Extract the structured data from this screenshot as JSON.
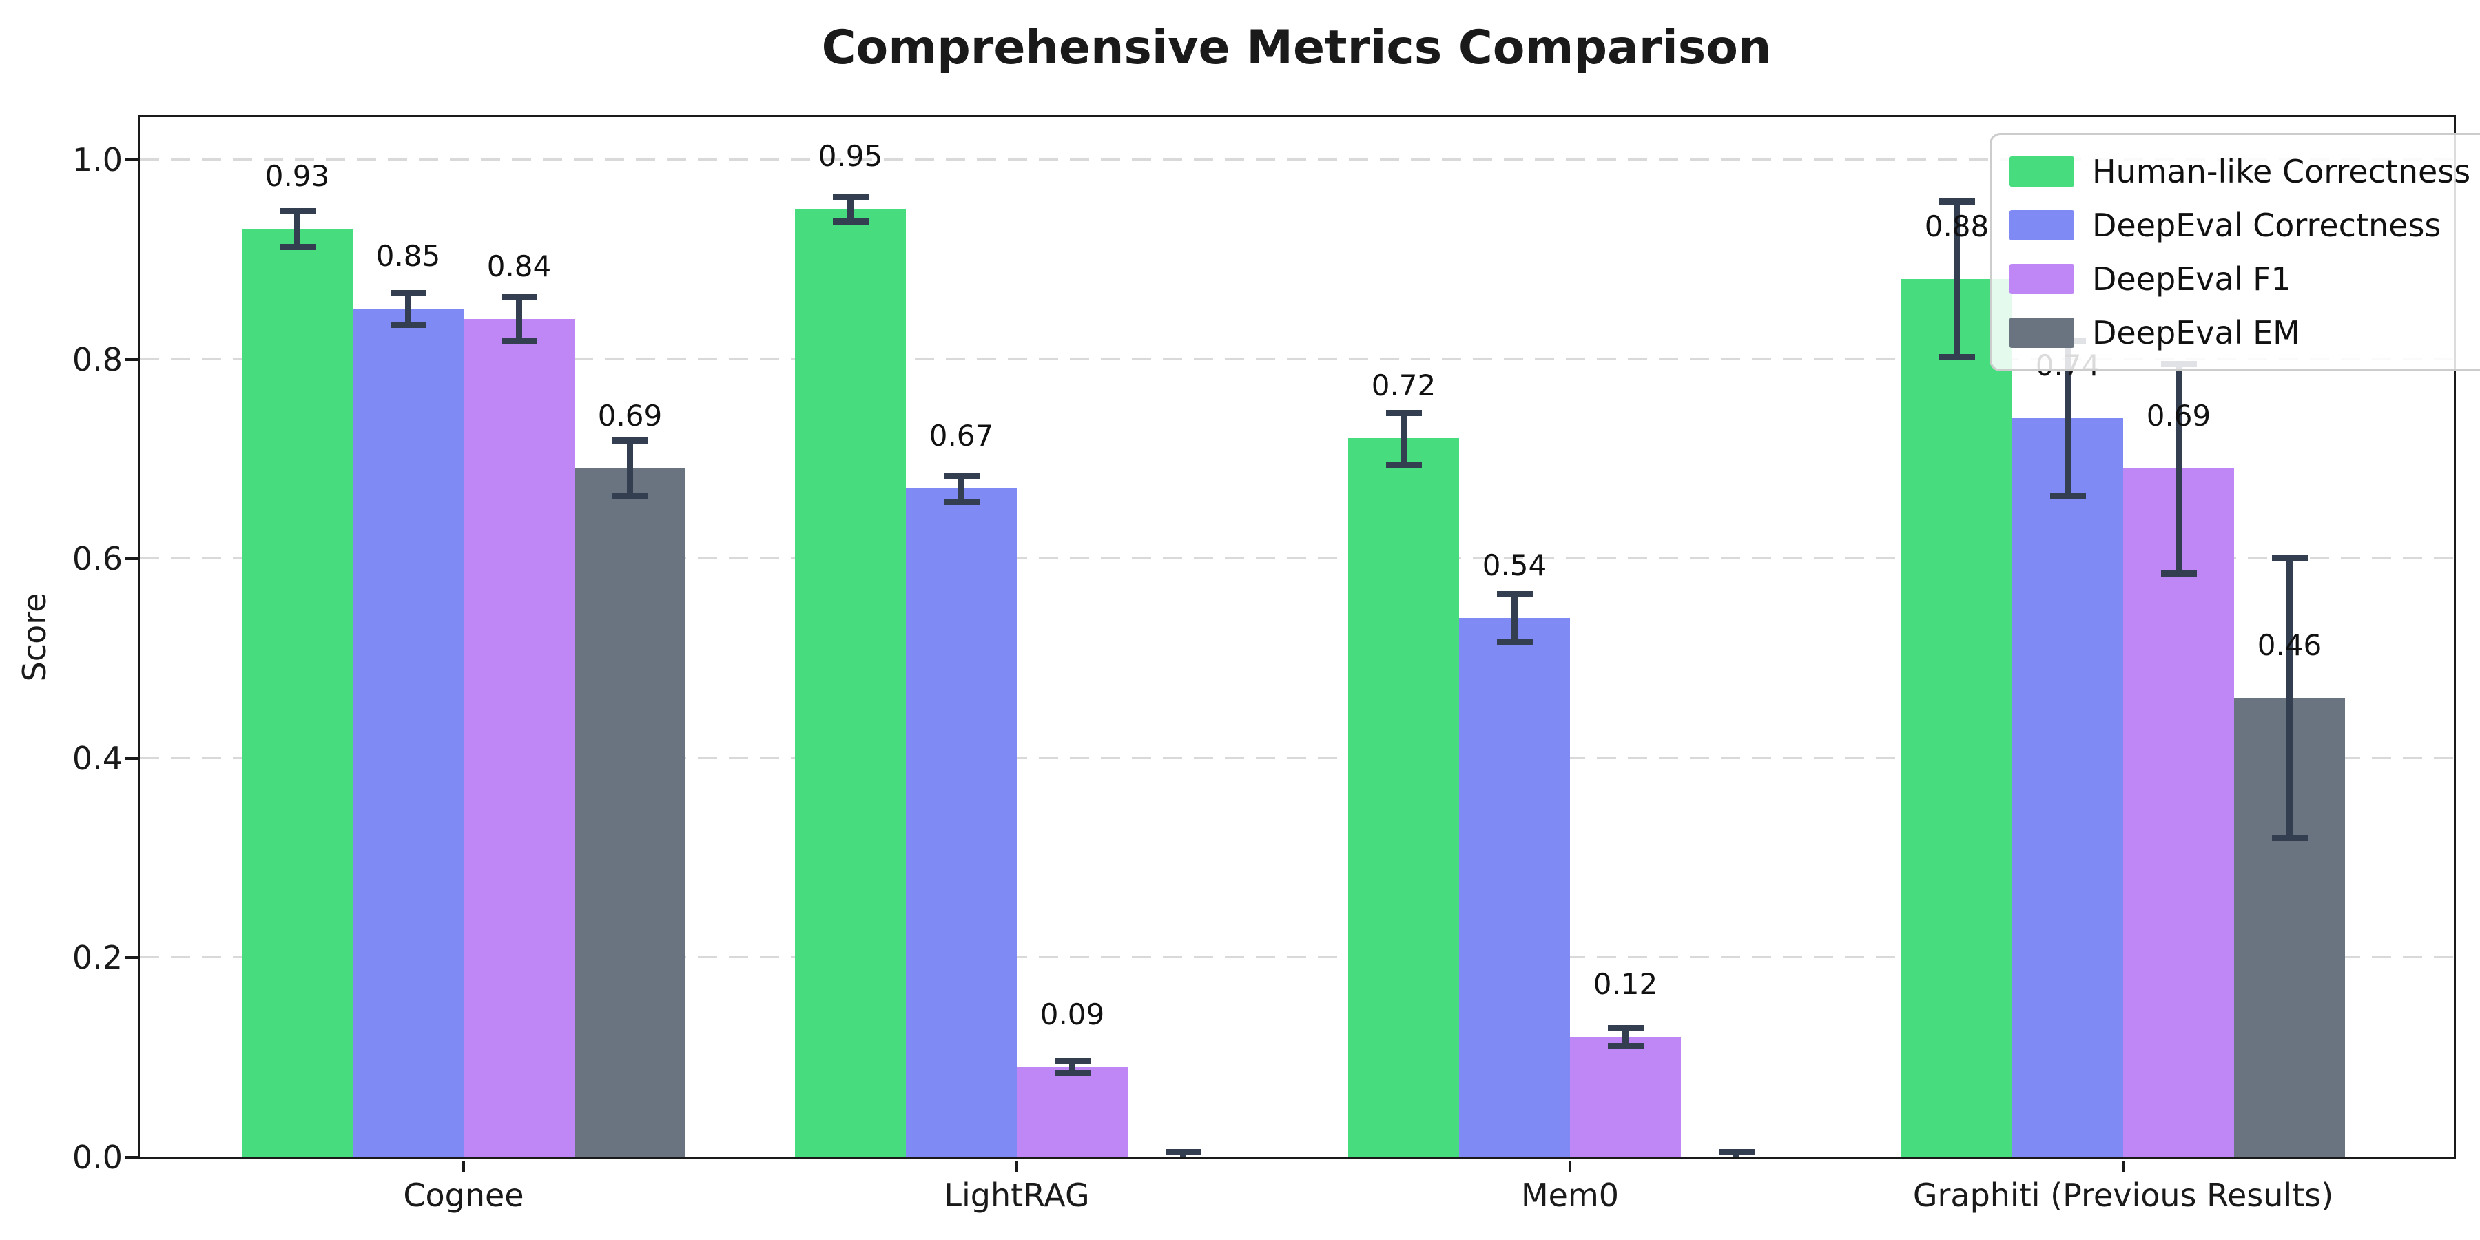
{
  "chart_data": {
    "type": "bar",
    "title": "Comprehensive Metrics Comparison",
    "xlabel": "",
    "ylabel": "Score",
    "categories": [
      "Cognee",
      "LightRAG",
      "Mem0",
      "Graphiti (Previous Results)"
    ],
    "series": [
      {
        "name": "Human-like Correctness",
        "color": "#47dc7e",
        "values": [
          0.93,
          0.95,
          0.72,
          0.88
        ],
        "errors": [
          0.018,
          0.012,
          0.026,
          0.078
        ],
        "value_labels": [
          "0.93",
          "0.95",
          "0.72",
          "0.88"
        ]
      },
      {
        "name": "DeepEval Correctness",
        "color": "#808af5",
        "values": [
          0.85,
          0.67,
          0.54,
          0.74
        ],
        "errors": [
          0.016,
          0.013,
          0.024,
          0.078
        ],
        "value_labels": [
          "0.85",
          "0.67",
          "0.54",
          "0.74"
        ]
      },
      {
        "name": "DeepEval F1",
        "color": "#be87f5",
        "values": [
          0.84,
          0.09,
          0.12,
          0.69
        ],
        "errors": [
          0.022,
          0.006,
          0.009,
          0.105
        ],
        "value_labels": [
          "0.84",
          "0.09",
          "0.12",
          "0.69"
        ]
      },
      {
        "name": "DeepEval EM",
        "color": "#6a7380",
        "values": [
          0.69,
          0.0,
          0.0,
          0.46
        ],
        "errors": [
          0.028,
          0.005,
          0.005,
          0.14
        ],
        "value_labels": [
          "0.69",
          "",
          "",
          "0.46"
        ]
      }
    ],
    "ytick_labels": [
      "1.0",
      "0.8",
      "0.6",
      "0.4",
      "0.2",
      "0.0"
    ],
    "yticks": [
      1.0,
      0.8,
      0.6,
      0.4,
      0.2,
      0.0
    ],
    "ylim": [
      0,
      1.046
    ],
    "grid": {
      "axis": "y",
      "style": "dashed",
      "color": "#d9d9d9"
    },
    "legend": {
      "position": "upper right"
    },
    "errorbar_color": "#333e50",
    "axis_color": "#1a1a1a",
    "background_color": "#ffffff"
  }
}
